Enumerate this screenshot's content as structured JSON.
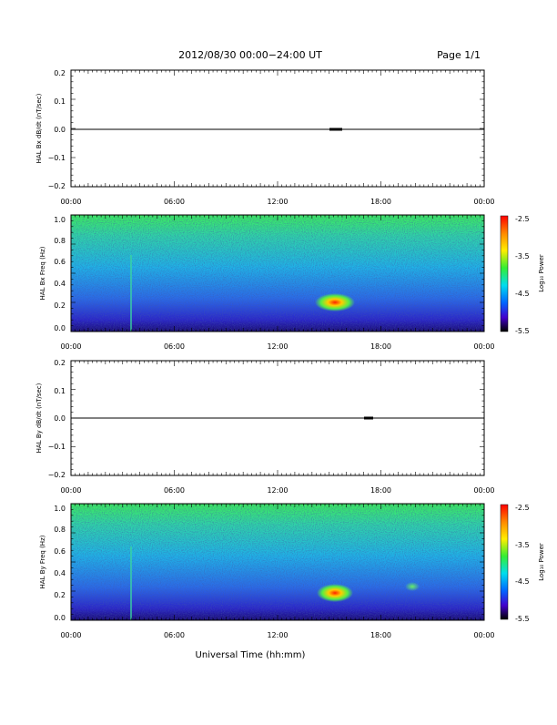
{
  "header": {
    "title": "2012/08/30  00:00−24:00 UT",
    "page": "Page 1/1"
  },
  "x_axis": {
    "label": "Universal Time (hh:mm)",
    "ticks": [
      "00:00",
      "06:00",
      "12:00",
      "18:00",
      "00:00"
    ]
  },
  "colorbar": {
    "label": "Log₁₀ Power",
    "ticks": [
      "-2.5",
      "-3.5",
      "-4.5",
      "-5.5"
    ]
  },
  "panels": {
    "bx_dbdt": {
      "ylabel": "HAL Bx dB/dt (nT/sec)",
      "yticks": [
        "0.2",
        "0.1",
        "0.0",
        "−0.1",
        "−0.2"
      ]
    },
    "bx_freq": {
      "ylabel": "HAL Bx Freq (Hz)",
      "yticks": [
        "1.0",
        "0.8",
        "0.6",
        "0.4",
        "0.2",
        "0.0"
      ]
    },
    "by_dbdt": {
      "ylabel": "HAL By dB/dt (nT/sec)",
      "yticks": [
        "0.2",
        "0.1",
        "0.0",
        "−0.1",
        "−0.2"
      ]
    },
    "by_freq": {
      "ylabel": "HAL By Freq (Hz)",
      "yticks": [
        "1.0",
        "0.8",
        "0.6",
        "0.4",
        "0.2",
        "0.0"
      ]
    }
  },
  "chart_data": [
    {
      "type": "line",
      "ylabel": "HAL Bx dB/dt (nT/sec)",
      "xlabel": "",
      "xlim": [
        0,
        24
      ],
      "ylim": [
        -0.2,
        0.2
      ],
      "x_ticks": [
        "00:00",
        "06:00",
        "12:00",
        "18:00",
        "00:00"
      ],
      "series": [
        {
          "x": [
            0,
            12,
            15.0,
            15.5,
            18,
            24
          ],
          "y": [
            0.0,
            0.0,
            0.002,
            -0.002,
            0.0,
            0.0
          ]
        }
      ]
    },
    {
      "type": "heatmap",
      "ylabel": "HAL Bx Freq (Hz)",
      "xlim": [
        0,
        24
      ],
      "ylim": [
        0.0,
        1.05
      ],
      "colorbar": {
        "label": "Log₁₀ Power",
        "range": [
          -5.5,
          -2.5
        ]
      },
      "features": [
        {
          "t_hours": 15.3,
          "freq_hz": 0.25,
          "log_power": -2.6
        }
      ]
    },
    {
      "type": "line",
      "ylabel": "HAL By dB/dt (nT/sec)",
      "xlim": [
        0,
        24
      ],
      "ylim": [
        -0.2,
        0.2
      ],
      "x_ticks": [
        "00:00",
        "06:00",
        "12:00",
        "18:00",
        "00:00"
      ],
      "series": [
        {
          "x": [
            0,
            12,
            17.0,
            17.5,
            24
          ],
          "y": [
            0.0,
            0.0,
            0.002,
            -0.002,
            0.0
          ]
        }
      ]
    },
    {
      "type": "heatmap",
      "ylabel": "HAL By Freq (Hz)",
      "xlim": [
        0,
        24
      ],
      "ylim": [
        0.0,
        1.05
      ],
      "colorbar": {
        "label": "Log₁₀ Power",
        "range": [
          -5.5,
          -2.5
        ]
      },
      "features": [
        {
          "t_hours": 15.2,
          "freq_hz": 0.22,
          "log_power": -2.7
        },
        {
          "t_hours": 19.8,
          "freq_hz": 0.28,
          "log_power": -3.8
        }
      ]
    }
  ]
}
